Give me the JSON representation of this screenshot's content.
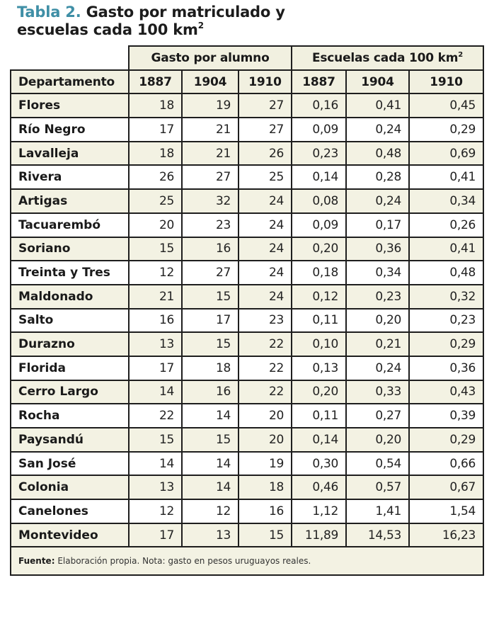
{
  "title": {
    "label": "Tabla 2.",
    "text_line1": "Gasto por matriculado y",
    "text_line2": "escuelas cada 100 km",
    "superscript": "2"
  },
  "table": {
    "group_headers": {
      "spending": "Gasto por alumno",
      "schools": "Escuelas cada 100 km",
      "schools_sup": "2"
    },
    "column_headers": [
      "Departamento",
      "1887",
      "1904",
      "1910",
      "1887",
      "1904",
      "1910"
    ],
    "rows": [
      [
        "Flores",
        "18",
        "19",
        "27",
        "0,16",
        "0,41",
        "0,45"
      ],
      [
        "Río Negro",
        "17",
        "21",
        "27",
        "0,09",
        "0,24",
        "0,29"
      ],
      [
        "Lavalleja",
        "18",
        "21",
        "26",
        "0,23",
        "0,48",
        "0,69"
      ],
      [
        "Rivera",
        "26",
        "27",
        "25",
        "0,14",
        "0,28",
        "0,41"
      ],
      [
        "Artigas",
        "25",
        "32",
        "24",
        "0,08",
        "0,24",
        "0,34"
      ],
      [
        "Tacuarembó",
        "20",
        "23",
        "24",
        "0,09",
        "0,17",
        "0,26"
      ],
      [
        "Soriano",
        "15",
        "16",
        "24",
        "0,20",
        "0,36",
        "0,41"
      ],
      [
        "Treinta y Tres",
        "12",
        "27",
        "24",
        "0,18",
        "0,34",
        "0,48"
      ],
      [
        "Maldonado",
        "21",
        "15",
        "24",
        "0,12",
        "0,23",
        "0,32"
      ],
      [
        "Salto",
        "16",
        "17",
        "23",
        "0,11",
        "0,20",
        "0,23"
      ],
      [
        "Durazno",
        "13",
        "15",
        "22",
        "0,10",
        "0,21",
        "0,29"
      ],
      [
        "Florida",
        "17",
        "18",
        "22",
        "0,13",
        "0,24",
        "0,36"
      ],
      [
        "Cerro Largo",
        "14",
        "16",
        "22",
        "0,20",
        "0,33",
        "0,43"
      ],
      [
        "Rocha",
        "22",
        "14",
        "20",
        "0,11",
        "0,27",
        "0,39"
      ],
      [
        "Paysandú",
        "15",
        "15",
        "20",
        "0,14",
        "0,20",
        "0,29"
      ],
      [
        "San José",
        "14",
        "14",
        "19",
        "0,30",
        "0,54",
        "0,66"
      ],
      [
        "Colonia",
        "13",
        "14",
        "18",
        "0,46",
        "0,57",
        "0,67"
      ],
      [
        "Canelones",
        "12",
        "12",
        "16",
        "1,12",
        "1,41",
        "1,54"
      ],
      [
        "Montevideo",
        "17",
        "13",
        "15",
        "11,89",
        "14,53",
        "16,23"
      ]
    ],
    "footnote": {
      "label": "Fuente:",
      "text": "Elaboración propia. Nota: gasto en pesos uruguayos reales."
    }
  }
}
